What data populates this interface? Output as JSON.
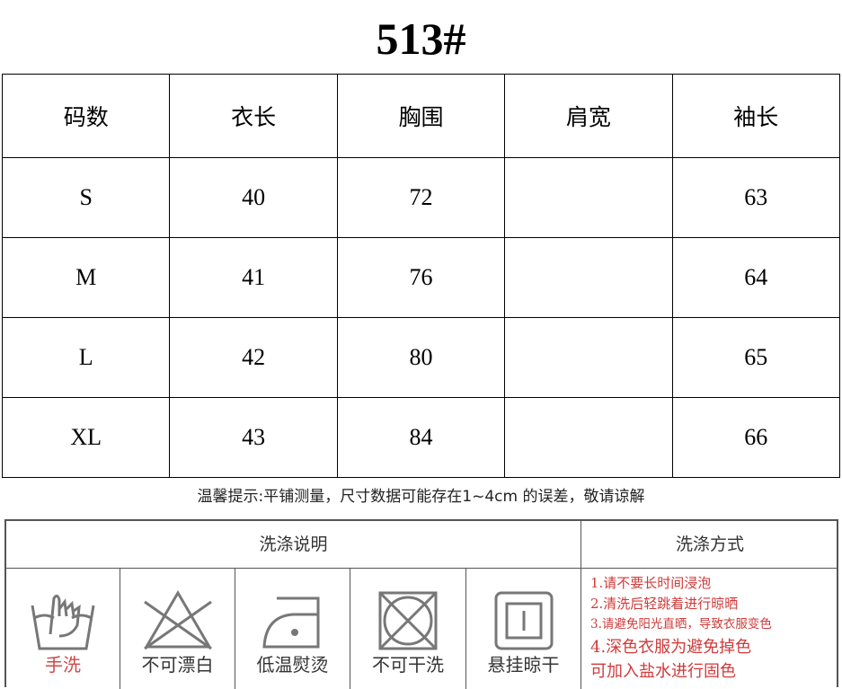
{
  "title": "513#",
  "size_table": {
    "headers": [
      "码数",
      "衣长",
      "胸围",
      "肩宽",
      "袖长"
    ],
    "rows": [
      [
        "S",
        "40",
        "72",
        "",
        "63"
      ],
      [
        "M",
        "41",
        "76",
        "",
        "64"
      ],
      [
        "L",
        "42",
        "80",
        "",
        "65"
      ],
      [
        "XL",
        "43",
        "84",
        "",
        "66"
      ]
    ]
  },
  "note": "温馨提示:平铺测量，尺寸数据可能存在1~4cm 的误差，敬请谅解",
  "care": {
    "instructions_header": "洗涤说明",
    "methods_header": "洗涤方式",
    "icons": [
      {
        "icon": "hand-wash-icon",
        "label": "手洗",
        "color": "#d04848"
      },
      {
        "icon": "no-bleach-icon",
        "label": "不可漂白"
      },
      {
        "icon": "low-iron-icon",
        "label": "低温熨烫"
      },
      {
        "icon": "no-dry-clean-icon",
        "label": "不可干洗"
      },
      {
        "icon": "hang-dry-icon",
        "label": "悬挂晾干"
      }
    ],
    "methods": [
      "1.请不要长时间浸泡",
      "2.清洗后轻跳着进行晾晒",
      "3.请避免阳光直晒，导致衣服变色",
      "4.深色衣服为避免掉色",
      "可加入盐水进行固色"
    ],
    "method_color": "#d03a3a"
  }
}
